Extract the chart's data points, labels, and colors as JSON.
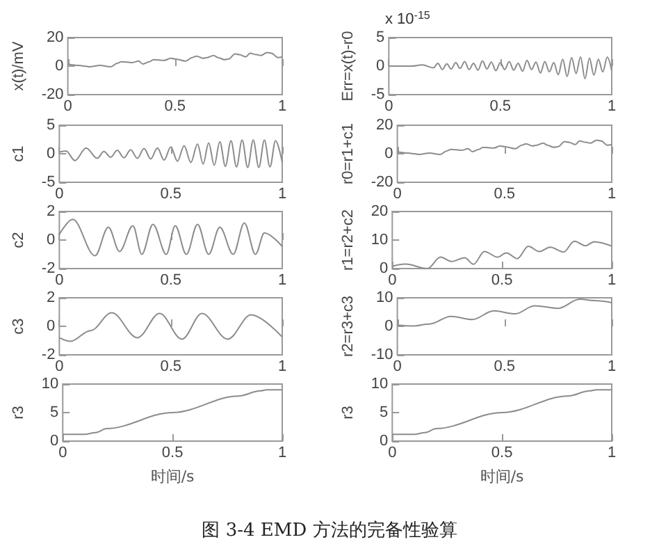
{
  "chart_data": [
    {
      "type": "line",
      "ylabel": "x(t)/mV",
      "xlim": [
        0,
        1
      ],
      "xticks": [
        0,
        0.5,
        1
      ],
      "ylim": [
        -20,
        20
      ],
      "yticks": [
        -20,
        0,
        20
      ],
      "color": "#8c8c8c",
      "marker": "none",
      "x": [
        0,
        0.05,
        0.08,
        0.1,
        0.15,
        0.2,
        0.23,
        0.25,
        0.3,
        0.33,
        0.35,
        0.38,
        0.4,
        0.45,
        0.48,
        0.5,
        0.55,
        0.58,
        0.6,
        0.63,
        0.65,
        0.68,
        0.7,
        0.73,
        0.75,
        0.78,
        0.8,
        0.83,
        0.85,
        0.88,
        0.9,
        0.93,
        0.95,
        0.98,
        1
      ],
      "values": [
        1.5,
        0.5,
        0,
        -0.5,
        0.5,
        -0.5,
        2,
        3,
        2.5,
        3.5,
        1.5,
        3,
        4.5,
        4,
        5.5,
        5,
        3.5,
        6,
        7,
        5.5,
        6,
        7.5,
        6,
        4.5,
        5,
        8.5,
        8,
        6.5,
        9,
        8,
        7.5,
        9.5,
        9,
        6,
        6.5
      ]
    },
    {
      "type": "line",
      "ylabel": "Err=x(t)-r0",
      "annotations": [
        "x 10$^{-15}$"
      ],
      "xlim": [
        0,
        1
      ],
      "xticks": [
        0,
        0.5,
        1
      ],
      "ylim": [
        -5,
        5
      ],
      "yticks": [
        -5,
        0,
        5
      ],
      "color": "#8c8c8c",
      "marker": "none",
      "x": [
        0,
        0.1,
        0.15,
        0.2,
        0.22,
        0.24,
        0.26,
        0.28,
        0.3,
        0.32,
        0.34,
        0.36,
        0.38,
        0.4,
        0.42,
        0.44,
        0.46,
        0.48,
        0.5,
        0.52,
        0.54,
        0.56,
        0.58,
        0.6,
        0.62,
        0.64,
        0.66,
        0.68,
        0.7,
        0.72,
        0.74,
        0.76,
        0.78,
        0.8,
        0.82,
        0.84,
        0.86,
        0.88,
        0.9,
        0.92,
        0.94,
        0.96,
        0.98,
        1
      ],
      "values": [
        0,
        0,
        0.2,
        -0.3,
        0.5,
        -0.6,
        0.4,
        -0.5,
        0.6,
        -0.4,
        0.8,
        -0.6,
        0.5,
        -0.7,
        0.9,
        -0.5,
        0.7,
        -0.8,
        0.6,
        -0.6,
        0.8,
        -0.7,
        0.5,
        -0.9,
        1,
        -0.6,
        0.7,
        -1.2,
        0.8,
        -1,
        0.6,
        -1.5,
        1.2,
        -1.8,
        1.5,
        -1.3,
        1.6,
        -2.2,
        1.4,
        -1.6,
        1.2,
        -1,
        1.6,
        -0.8
      ]
    },
    {
      "type": "line",
      "ylabel": "c1",
      "xlim": [
        0,
        1
      ],
      "xticks": [
        0,
        0.5,
        1
      ],
      "ylim": [
        -5,
        5
      ],
      "yticks": [
        -5,
        0,
        5
      ],
      "color": "#8c8c8c",
      "marker": "none",
      "x": [
        0,
        0.03,
        0.07,
        0.12,
        0.17,
        0.2,
        0.23,
        0.26,
        0.29,
        0.32,
        0.35,
        0.38,
        0.41,
        0.44,
        0.47,
        0.5,
        0.53,
        0.56,
        0.59,
        0.62,
        0.645,
        0.67,
        0.695,
        0.72,
        0.745,
        0.77,
        0.795,
        0.82,
        0.845,
        0.87,
        0.895,
        0.92,
        0.945,
        0.97,
        1
      ],
      "values": [
        0.3,
        0.5,
        -1.2,
        1,
        -0.8,
        0.4,
        -0.6,
        0.6,
        -0.7,
        0.7,
        -0.8,
        0.9,
        -0.9,
        1,
        -1.1,
        1.2,
        -1.3,
        1.4,
        -1.5,
        1.7,
        -1.8,
        1.9,
        -2,
        2.1,
        -2.2,
        2.3,
        -2.3,
        2.4,
        -2.4,
        2.4,
        -2.4,
        2.4,
        -2.3,
        2.3,
        -1.5
      ]
    },
    {
      "type": "line",
      "ylabel": "r0=r1+c1",
      "xlim": [
        0,
        1
      ],
      "xticks": [
        0,
        0.5,
        1
      ],
      "ylim": [
        -20,
        20
      ],
      "yticks": [
        -20,
        0,
        20
      ],
      "color": "#8c8c8c",
      "marker": "none",
      "x": [
        0,
        0.05,
        0.08,
        0.1,
        0.15,
        0.2,
        0.23,
        0.25,
        0.3,
        0.33,
        0.35,
        0.38,
        0.4,
        0.45,
        0.48,
        0.5,
        0.55,
        0.58,
        0.6,
        0.63,
        0.65,
        0.68,
        0.7,
        0.73,
        0.75,
        0.78,
        0.8,
        0.83,
        0.85,
        0.88,
        0.9,
        0.93,
        0.95,
        0.98,
        1
      ],
      "values": [
        1.5,
        0.5,
        0,
        -0.5,
        0.5,
        -0.5,
        2,
        3,
        2.5,
        3.5,
        1.5,
        3,
        4.5,
        4,
        5.5,
        5,
        3.5,
        6,
        7,
        5.5,
        6,
        7.5,
        6,
        4.5,
        5,
        8.5,
        8,
        6.5,
        9,
        8,
        7.5,
        9.5,
        9,
        6,
        6.5
      ]
    },
    {
      "type": "line",
      "ylabel": "c2",
      "xlim": [
        0,
        1
      ],
      "xticks": [
        0,
        0.5,
        1
      ],
      "ylim": [
        -2,
        2
      ],
      "yticks": [
        -2,
        0,
        2
      ],
      "color": "#8c8c8c",
      "marker": "none",
      "x": [
        0,
        0.06,
        0.16,
        0.22,
        0.27,
        0.33,
        0.37,
        0.42,
        0.48,
        0.52,
        0.57,
        0.62,
        0.67,
        0.72,
        0.78,
        0.83,
        0.88,
        0.92,
        1
      ],
      "values": [
        0.4,
        1.45,
        -1.1,
        0.9,
        -0.8,
        1,
        -1,
        1.1,
        -1,
        1,
        -1,
        1.1,
        -1,
        0.9,
        -1,
        1.2,
        -1,
        0.5,
        -0.45
      ]
    },
    {
      "type": "line",
      "ylabel": "r1=r2+c2",
      "xlim": [
        0,
        1
      ],
      "xticks": [
        0,
        0.5,
        1
      ],
      "ylim": [
        0,
        20
      ],
      "yticks": [
        0,
        10,
        20
      ],
      "color": "#8c8c8c",
      "marker": "none",
      "x": [
        0,
        0.06,
        0.16,
        0.22,
        0.27,
        0.33,
        0.37,
        0.42,
        0.48,
        0.52,
        0.57,
        0.62,
        0.67,
        0.72,
        0.78,
        0.83,
        0.88,
        0.92,
        1
      ],
      "values": [
        0.8,
        1.6,
        0,
        4,
        2.5,
        3.8,
        1.5,
        6,
        4,
        5.5,
        3.5,
        7.8,
        6,
        7.5,
        5.8,
        9.6,
        8,
        9.4,
        7.9
      ]
    },
    {
      "type": "line",
      "ylabel": "c3",
      "xlim": [
        0,
        1
      ],
      "xticks": [
        0,
        0.5,
        1
      ],
      "ylim": [
        -2,
        2
      ],
      "yticks": [
        -2,
        0,
        2
      ],
      "color": "#8c8c8c",
      "marker": "none",
      "x": [
        0,
        0.05,
        0.14,
        0.235,
        0.35,
        0.45,
        0.55,
        0.64,
        0.755,
        0.86,
        1
      ],
      "values": [
        -0.8,
        -1.05,
        -0.3,
        0.95,
        -0.8,
        0.9,
        -0.9,
        0.9,
        -0.9,
        0.8,
        -0.75
      ]
    },
    {
      "type": "line",
      "ylabel": "r2=r3+c3",
      "xlim": [
        0,
        1
      ],
      "xticks": [
        0,
        0.5,
        1
      ],
      "ylim": [
        -10,
        10
      ],
      "yticks": [
        -10,
        0,
        10
      ],
      "color": "#8c8c8c",
      "marker": "none",
      "x": [
        0,
        0.07,
        0.15,
        0.25,
        0.35,
        0.45,
        0.55,
        0.64,
        0.75,
        0.85,
        0.92,
        1
      ],
      "values": [
        0.4,
        0.1,
        0.8,
        3.5,
        2.4,
        5.4,
        4.4,
        7.2,
        6.3,
        9.5,
        9,
        8.3
      ]
    },
    {
      "type": "line",
      "ylabel": "r3",
      "xlabel": "时间/s",
      "xlim": [
        0,
        1
      ],
      "xticks": [
        0,
        0.5,
        1
      ],
      "ylim": [
        0,
        10
      ],
      "yticks": [
        0,
        5,
        10
      ],
      "color": "#8c8c8c",
      "marker": "none",
      "x": [
        0,
        0.1,
        0.15,
        0.2,
        0.5,
        0.8,
        0.9,
        0.93,
        1
      ],
      "values": [
        1.2,
        1.2,
        1.5,
        2.2,
        5,
        7.9,
        8.8,
        9,
        9
      ]
    },
    {
      "type": "line",
      "ylabel": "r3",
      "xlabel": "时间/s",
      "annotations": [
        "图 3-4 EMD 方法的完备性验算"
      ],
      "xlim": [
        0,
        1
      ],
      "xticks": [
        0,
        0.5,
        1
      ],
      "ylim": [
        0,
        10
      ],
      "yticks": [
        0,
        5,
        10
      ],
      "color": "#8c8c8c",
      "marker": "none",
      "x": [
        0,
        0.1,
        0.15,
        0.2,
        0.5,
        0.8,
        0.9,
        0.93,
        1
      ],
      "values": [
        1.2,
        1.2,
        1.5,
        2.2,
        5,
        7.9,
        8.8,
        9,
        9
      ]
    }
  ]
}
